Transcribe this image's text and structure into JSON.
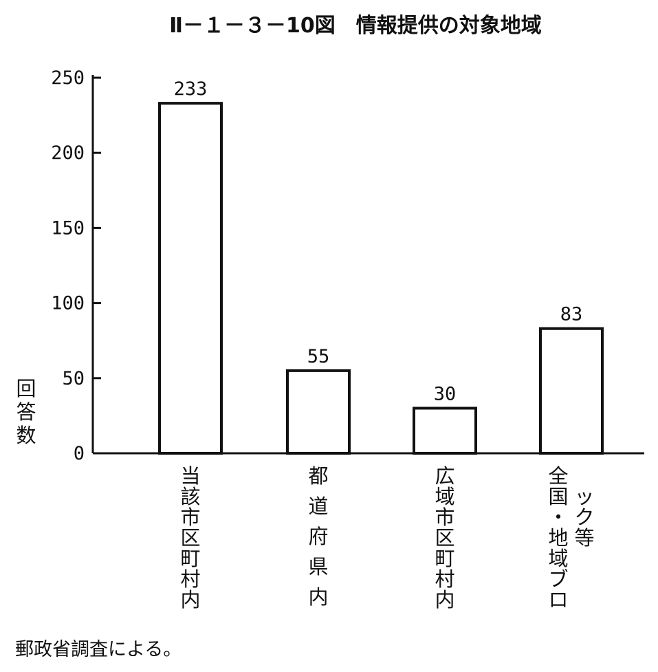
{
  "chart_data": {
    "type": "bar",
    "title": "Ⅱ－１－３－10図　情報提供の対象地域",
    "ylabel": "回答数",
    "xlabel": "",
    "categories": [
      "当該市区町村内",
      "都道府県内",
      "広域市区町村内",
      "全国・地域ブロック等"
    ],
    "values": [
      233,
      55,
      30,
      83
    ],
    "ylim": [
      0,
      250
    ],
    "yticks": [
      0,
      50,
      100,
      150,
      200,
      250
    ],
    "grid": false
  },
  "source": "郵政省調査による。"
}
